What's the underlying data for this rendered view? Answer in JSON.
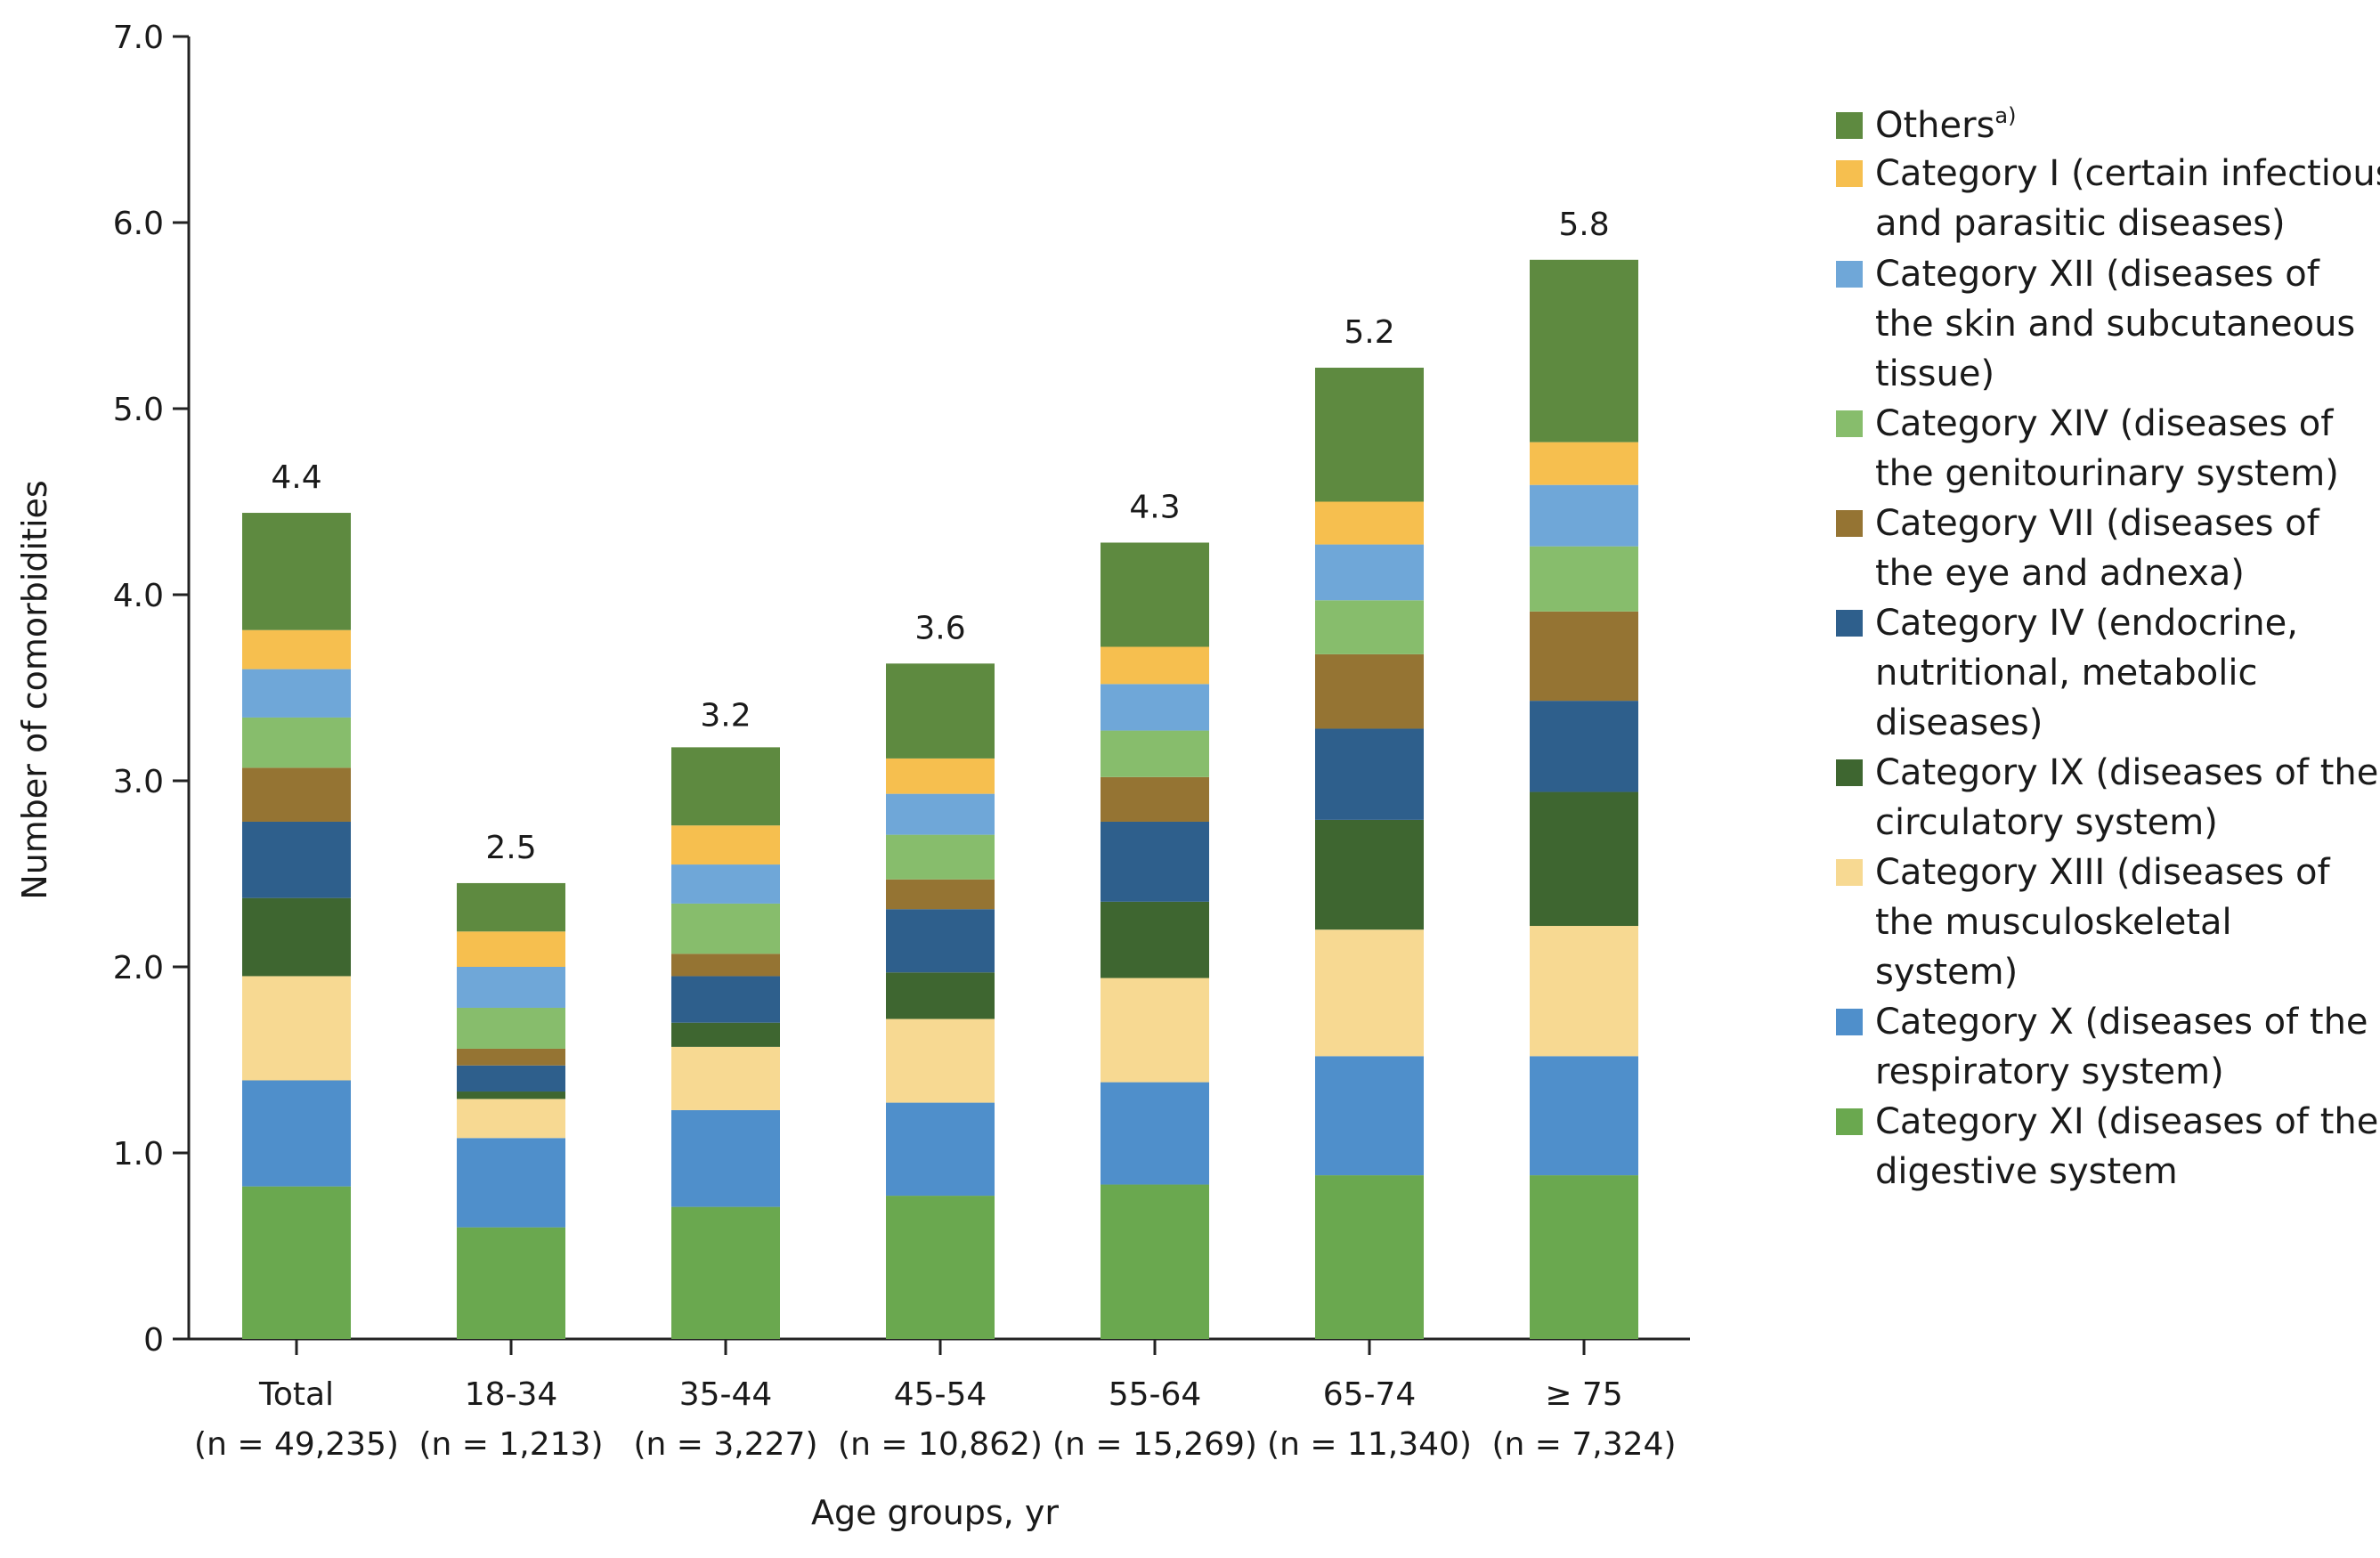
{
  "chart_data": {
    "type": "bar",
    "stacked": true,
    "xlabel": "Age groups, yr",
    "ylabel": "Number of comorbidities",
    "ylim": [
      0,
      7.0
    ],
    "ytick_labels": [
      "0",
      "1.0",
      "2.0",
      "3.0",
      "4.0",
      "5.0",
      "6.0",
      "7.0"
    ],
    "ytick_values": [
      0,
      1,
      2,
      3,
      4,
      5,
      6,
      7
    ],
    "categories": [
      {
        "name": "Total",
        "n": "(n = 49,235)"
      },
      {
        "name": "18-34",
        "n": "(n = 1,213)"
      },
      {
        "name": "35-44",
        "n": "(n = 3,227)"
      },
      {
        "name": "45-54",
        "n": "(n = 10,862)"
      },
      {
        "name": "55-64",
        "n": "(n = 15,269)"
      },
      {
        "name": "65-74",
        "n": "(n = 11,340)"
      },
      {
        "name": "≥ 75",
        "n": "(n = 7,324)"
      }
    ],
    "totals": [
      "4.4",
      "2.5",
      "3.2",
      "3.6",
      "4.3",
      "5.2",
      "5.8"
    ],
    "total_values": [
      4.44,
      2.45,
      3.16,
      3.63,
      4.28,
      5.22,
      5.8
    ],
    "series": [
      {
        "name": "Category XI (diseases of the digestive system",
        "color": "#6aa84f",
        "values": [
          0.82,
          0.6,
          0.71,
          0.77,
          0.83,
          0.88,
          0.88
        ]
      },
      {
        "name": "Category X (diseases of the respiratory system)",
        "color": "#4f8fcb",
        "values": [
          0.57,
          0.48,
          0.52,
          0.5,
          0.55,
          0.64,
          0.64
        ]
      },
      {
        "name": "Category XIII (diseases of the musculoskeletal system)",
        "color": "#f7d992",
        "values": [
          0.56,
          0.21,
          0.34,
          0.45,
          0.56,
          0.68,
          0.7
        ]
      },
      {
        "name": "Category IX (diseases of the circulatory system)",
        "color": "#3e6630",
        "values": [
          0.42,
          0.04,
          0.13,
          0.25,
          0.41,
          0.59,
          0.72
        ]
      },
      {
        "name": "Category IV (endocrine, nutritional, metabolic diseases)",
        "color": "#2e5f8c",
        "values": [
          0.41,
          0.14,
          0.25,
          0.34,
          0.43,
          0.49,
          0.49
        ]
      },
      {
        "name": "Category VII (diseases of the eye and adnexa)",
        "color": "#957433",
        "values": [
          0.29,
          0.09,
          0.12,
          0.16,
          0.24,
          0.4,
          0.48
        ]
      },
      {
        "name": "Category XIV (diseases of the genitourinary system)",
        "color": "#87bd6c",
        "values": [
          0.27,
          0.22,
          0.27,
          0.24,
          0.25,
          0.29,
          0.35
        ]
      },
      {
        "name": "Category XII (diseases of the skin and subcutaneous tissue)",
        "color": "#6fa7d8",
        "values": [
          0.26,
          0.22,
          0.21,
          0.22,
          0.25,
          0.3,
          0.33
        ]
      },
      {
        "name": "Category I (certain infectious and parasitic diseases)",
        "color": "#f6bf4f",
        "values": [
          0.21,
          0.19,
          0.21,
          0.19,
          0.2,
          0.23,
          0.23
        ]
      },
      {
        "name": "Others",
        "color": "#5e8a40",
        "values": [
          0.63,
          0.26,
          0.42,
          0.51,
          0.56,
          0.72,
          0.98
        ]
      }
    ],
    "legend": {
      "position": "right",
      "items": [
        {
          "series": 9,
          "lines": [
            "Others"
          ],
          "sup": "a)"
        },
        {
          "series": 8,
          "lines": [
            "Category I (certain infectious",
            "and parasitic diseases)"
          ]
        },
        {
          "series": 7,
          "lines": [
            "Category XII (diseases of",
            "the skin and subcutaneous",
            "tissue)"
          ]
        },
        {
          "series": 6,
          "lines": [
            "Category XIV (diseases of",
            "the genitourinary system)"
          ]
        },
        {
          "series": 5,
          "lines": [
            "Category VII (diseases of",
            "the eye and adnexa)"
          ]
        },
        {
          "series": 4,
          "lines": [
            "Category IV (endocrine,",
            "nutritional, metabolic",
            "diseases)"
          ]
        },
        {
          "series": 3,
          "lines": [
            "Category IX (diseases of the",
            "circulatory system)"
          ]
        },
        {
          "series": 2,
          "lines": [
            "Category XIII (diseases of",
            "the musculoskeletal",
            "system)"
          ]
        },
        {
          "series": 1,
          "lines": [
            "Category X (diseases of the",
            "respiratory system)"
          ]
        },
        {
          "series": 0,
          "lines": [
            "Category XI (diseases of the",
            "digestive system"
          ]
        }
      ]
    }
  }
}
